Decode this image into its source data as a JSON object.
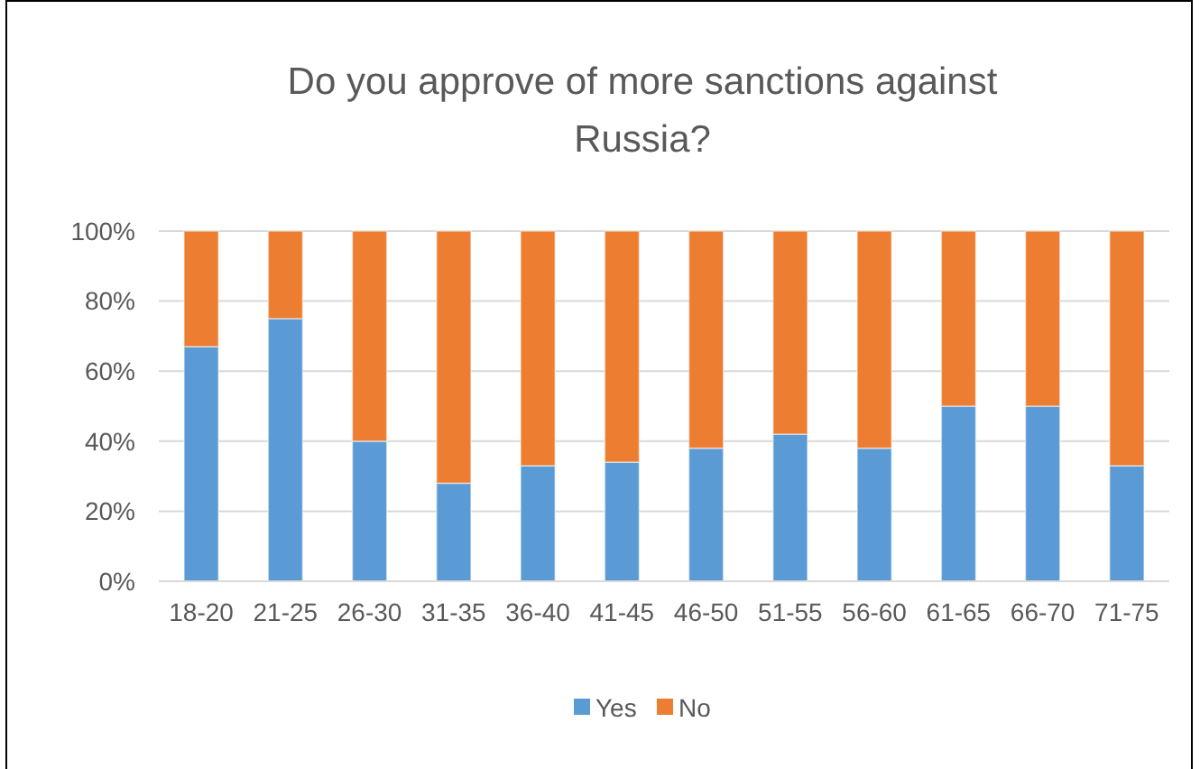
{
  "chart_data": {
    "type": "bar",
    "stacked": true,
    "title": "Do you approve of more sanctions against Russia?",
    "categories": [
      "18-20",
      "21-25",
      "26-30",
      "31-35",
      "36-40",
      "41-45",
      "46-50",
      "51-55",
      "56-60",
      "61-65",
      "66-70",
      "71-75"
    ],
    "series": [
      {
        "name": "Yes",
        "color": "#5b9bd5",
        "values": [
          67,
          75,
          40,
          28,
          33,
          34,
          38,
          42,
          38,
          50,
          50,
          33
        ]
      },
      {
        "name": "No",
        "color": "#ed7d31",
        "values": [
          33,
          25,
          60,
          72,
          67,
          66,
          62,
          58,
          62,
          50,
          50,
          67
        ]
      }
    ],
    "ylim": [
      0,
      100
    ],
    "yticks": [
      {
        "value": 0,
        "label": "0%"
      },
      {
        "value": 20,
        "label": "20%"
      },
      {
        "value": 40,
        "label": "40%"
      },
      {
        "value": 60,
        "label": "60%"
      },
      {
        "value": 80,
        "label": "80%"
      },
      {
        "value": 100,
        "label": "100%"
      }
    ],
    "grid": "y",
    "legend": "bottom"
  }
}
